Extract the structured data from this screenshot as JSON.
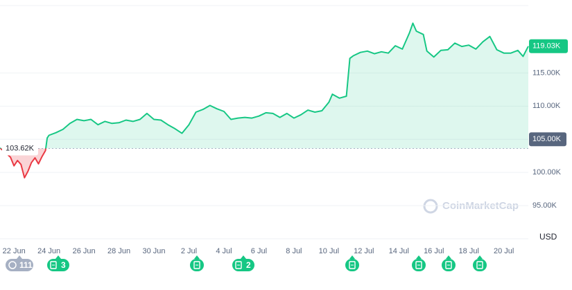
{
  "chart_data": {
    "type": "line",
    "xlim": [
      -0.8,
      29.4
    ],
    "xticks": [
      {
        "value": 0,
        "label": "22 Jun"
      },
      {
        "value": 2,
        "label": "24 Jun"
      },
      {
        "value": 4,
        "label": "26 Jun"
      },
      {
        "value": 6,
        "label": "28 Jun"
      },
      {
        "value": 8,
        "label": "30 Jun"
      },
      {
        "value": 10,
        "label": "2 Jul"
      },
      {
        "value": 12,
        "label": "4 Jul"
      },
      {
        "value": 14,
        "label": "6 Jul"
      },
      {
        "value": 16,
        "label": "8 Jul"
      },
      {
        "value": 18,
        "label": "10 Jul"
      },
      {
        "value": 20,
        "label": "12 Jul"
      },
      {
        "value": 22,
        "label": "14 Jul"
      },
      {
        "value": 24,
        "label": "16 Jul"
      },
      {
        "value": 26,
        "label": "18 Jul"
      },
      {
        "value": 28,
        "label": "20 Jul"
      }
    ],
    "ylim": [
      90000,
      126000
    ],
    "yticks": [
      {
        "value": 95000,
        "label": "95.00K"
      },
      {
        "value": 100000,
        "label": "100.00K"
      },
      {
        "value": 110000,
        "label": "110.00K"
      },
      {
        "value": 115000,
        "label": "115.00K"
      }
    ],
    "y_unit": "USD",
    "grid": true,
    "x": [
      -0.8,
      -0.2,
      0.0,
      0.2,
      0.4,
      0.6,
      0.8,
      1.0,
      1.2,
      1.4,
      1.6,
      1.8,
      1.9,
      2.0,
      2.4,
      2.8,
      3.2,
      3.6,
      4.0,
      4.4,
      4.8,
      5.2,
      5.6,
      6.0,
      6.4,
      6.8,
      7.2,
      7.6,
      8.0,
      8.4,
      8.8,
      9.2,
      9.6,
      10.0,
      10.4,
      10.8,
      11.2,
      11.6,
      12.0,
      12.4,
      12.8,
      13.2,
      13.6,
      14.0,
      14.4,
      14.8,
      15.2,
      15.6,
      16.0,
      16.4,
      16.8,
      17.2,
      17.6,
      18.0,
      18.2,
      18.6,
      19.0,
      19.2,
      19.4,
      19.8,
      20.2,
      20.6,
      21.0,
      21.4,
      21.8,
      22.2,
      22.6,
      22.8,
      23.0,
      23.4,
      23.6,
      24.0,
      24.4,
      24.8,
      25.2,
      25.6,
      26.0,
      26.4,
      26.8,
      27.2,
      27.6,
      28.0,
      28.4,
      28.8,
      29.1,
      29.4
    ],
    "series": [
      {
        "color": "#16c784",
        "down_color": "#ea3943",
        "values": [
          103700,
          102300,
          101000,
          101800,
          101200,
          99200,
          100200,
          101500,
          102200,
          101300,
          102400,
          103300,
          105200,
          105600,
          106000,
          106500,
          107400,
          108000,
          107800,
          108000,
          107200,
          107700,
          107400,
          107500,
          107900,
          107700,
          108000,
          108900,
          108000,
          107900,
          107200,
          106600,
          105900,
          107200,
          109100,
          109500,
          110100,
          109600,
          109200,
          108000,
          108200,
          108300,
          108200,
          108500,
          109000,
          108900,
          108300,
          108900,
          108200,
          108700,
          109400,
          109100,
          109300,
          110600,
          111800,
          111200,
          111500,
          117200,
          117600,
          118100,
          118300,
          117900,
          118200,
          118000,
          119100,
          118600,
          121000,
          122500,
          121300,
          120800,
          118300,
          117400,
          118400,
          118500,
          119500,
          119000,
          119200,
          118600,
          119700,
          120500,
          118500,
          118000,
          118000,
          118400,
          117500,
          119030
        ]
      }
    ],
    "baseline": {
      "value": 103620,
      "label": "103.62K"
    },
    "last_price": {
      "value": 119030,
      "label": "119.03K"
    },
    "crosshair": {
      "value": 105000,
      "label": "105.00K"
    },
    "watermark": "CoinMarketCap",
    "badges": [
      "111",
      "3",
      "2"
    ]
  }
}
